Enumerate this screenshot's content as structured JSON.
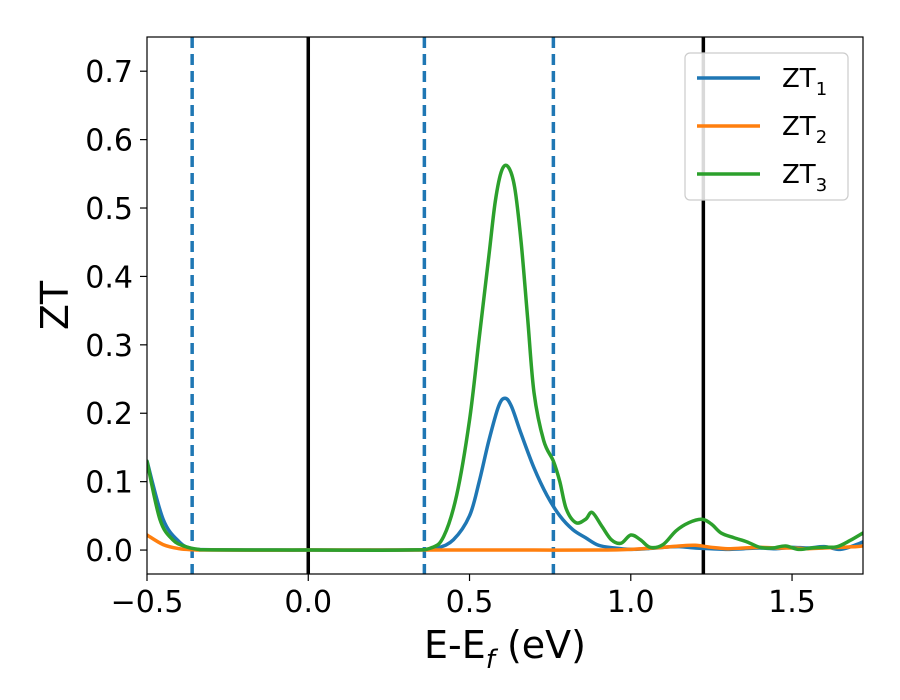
{
  "chart_data": {
    "type": "line",
    "xlabel_main": "E-E",
    "xlabel_sub": "f",
    "xlabel_tail": " (eV)",
    "ylabel": "ZT",
    "xlim": [
      -0.5,
      1.72
    ],
    "ylim": [
      -0.035,
      0.75
    ],
    "x_ticks": [
      -0.5,
      0.0,
      0.5,
      1.0,
      1.5
    ],
    "x_tick_labels": [
      "−0.5",
      "0.0",
      "0.5",
      "1.0",
      "1.5"
    ],
    "y_ticks": [
      0.0,
      0.1,
      0.2,
      0.3,
      0.4,
      0.5,
      0.6,
      0.7
    ],
    "y_tick_labels": [
      "0.0",
      "0.1",
      "0.2",
      "0.3",
      "0.4",
      "0.5",
      "0.6",
      "0.7"
    ],
    "grid": false,
    "legend_position": "top-right",
    "vlines_solid": [
      0.0,
      1.225
    ],
    "vlines_dashed": [
      -0.36,
      0.36,
      0.76
    ],
    "vline_solid_color": "#000000",
    "vline_dashed_color": "#1f77b4",
    "series": [
      {
        "name_main": "ZT",
        "name_sub": "1",
        "color": "#1f77b4",
        "x": [
          -0.5,
          -0.45,
          -0.4,
          -0.36,
          -0.3,
          -0.1,
          0.0,
          0.2,
          0.35,
          0.4,
          0.45,
          0.5,
          0.53,
          0.56,
          0.59,
          0.61,
          0.63,
          0.66,
          0.7,
          0.74,
          0.78,
          0.82,
          0.86,
          0.9,
          0.95,
          1.0,
          1.05,
          1.1,
          1.15,
          1.2,
          1.25,
          1.3,
          1.35,
          1.4,
          1.45,
          1.5,
          1.55,
          1.6,
          1.65,
          1.7,
          1.72
        ],
        "y": [
          0.13,
          0.045,
          0.012,
          0.002,
          0.0005,
          0.0,
          0.0,
          0.0,
          0.0005,
          0.003,
          0.015,
          0.05,
          0.1,
          0.16,
          0.21,
          0.222,
          0.21,
          0.17,
          0.12,
          0.08,
          0.05,
          0.03,
          0.018,
          0.007,
          0.003,
          0.001,
          0.002,
          0.004,
          0.005,
          0.003,
          0.002,
          0.001,
          0.002,
          0.003,
          0.002,
          0.004,
          0.003,
          0.005,
          0.001,
          0.008,
          0.012
        ]
      },
      {
        "name_main": "ZT",
        "name_sub": "2",
        "color": "#ff7f0e",
        "x": [
          -0.5,
          -0.45,
          -0.4,
          -0.36,
          -0.3,
          0.0,
          0.3,
          0.5,
          0.7,
          0.9,
          1.0,
          1.1,
          1.15,
          1.2,
          1.25,
          1.3,
          1.35,
          1.4,
          1.45,
          1.5,
          1.55,
          1.6,
          1.65,
          1.7,
          1.72
        ],
        "y": [
          0.022,
          0.008,
          0.002,
          0.0005,
          0.0,
          0.0,
          0.0,
          0.0,
          0.0,
          0.0,
          0.001,
          0.004,
          0.006,
          0.007,
          0.004,
          0.002,
          0.003,
          0.004,
          0.003,
          0.003,
          0.002,
          0.003,
          0.004,
          0.005,
          0.006
        ]
      },
      {
        "name_main": "ZT",
        "name_sub": "3",
        "color": "#2ca02c",
        "x": [
          -0.5,
          -0.46,
          -0.42,
          -0.38,
          -0.34,
          -0.3,
          0.0,
          0.3,
          0.38,
          0.42,
          0.46,
          0.5,
          0.53,
          0.56,
          0.58,
          0.6,
          0.62,
          0.64,
          0.66,
          0.68,
          0.7,
          0.73,
          0.76,
          0.78,
          0.8,
          0.83,
          0.86,
          0.88,
          0.91,
          0.94,
          0.97,
          1.0,
          1.03,
          1.06,
          1.1,
          1.14,
          1.18,
          1.22,
          1.25,
          1.28,
          1.32,
          1.36,
          1.4,
          1.44,
          1.48,
          1.52,
          1.56,
          1.6,
          1.64,
          1.68,
          1.72
        ],
        "y": [
          0.13,
          0.045,
          0.015,
          0.005,
          0.001,
          0.0003,
          0.0,
          0.0,
          0.003,
          0.02,
          0.08,
          0.19,
          0.31,
          0.43,
          0.51,
          0.555,
          0.56,
          0.53,
          0.45,
          0.34,
          0.23,
          0.16,
          0.13,
          0.1,
          0.06,
          0.04,
          0.045,
          0.055,
          0.035,
          0.015,
          0.01,
          0.022,
          0.015,
          0.004,
          0.008,
          0.028,
          0.04,
          0.045,
          0.038,
          0.025,
          0.018,
          0.012,
          0.004,
          0.003,
          0.006,
          0.001,
          0.003,
          0.004,
          0.005,
          0.014,
          0.025
        ]
      }
    ]
  }
}
